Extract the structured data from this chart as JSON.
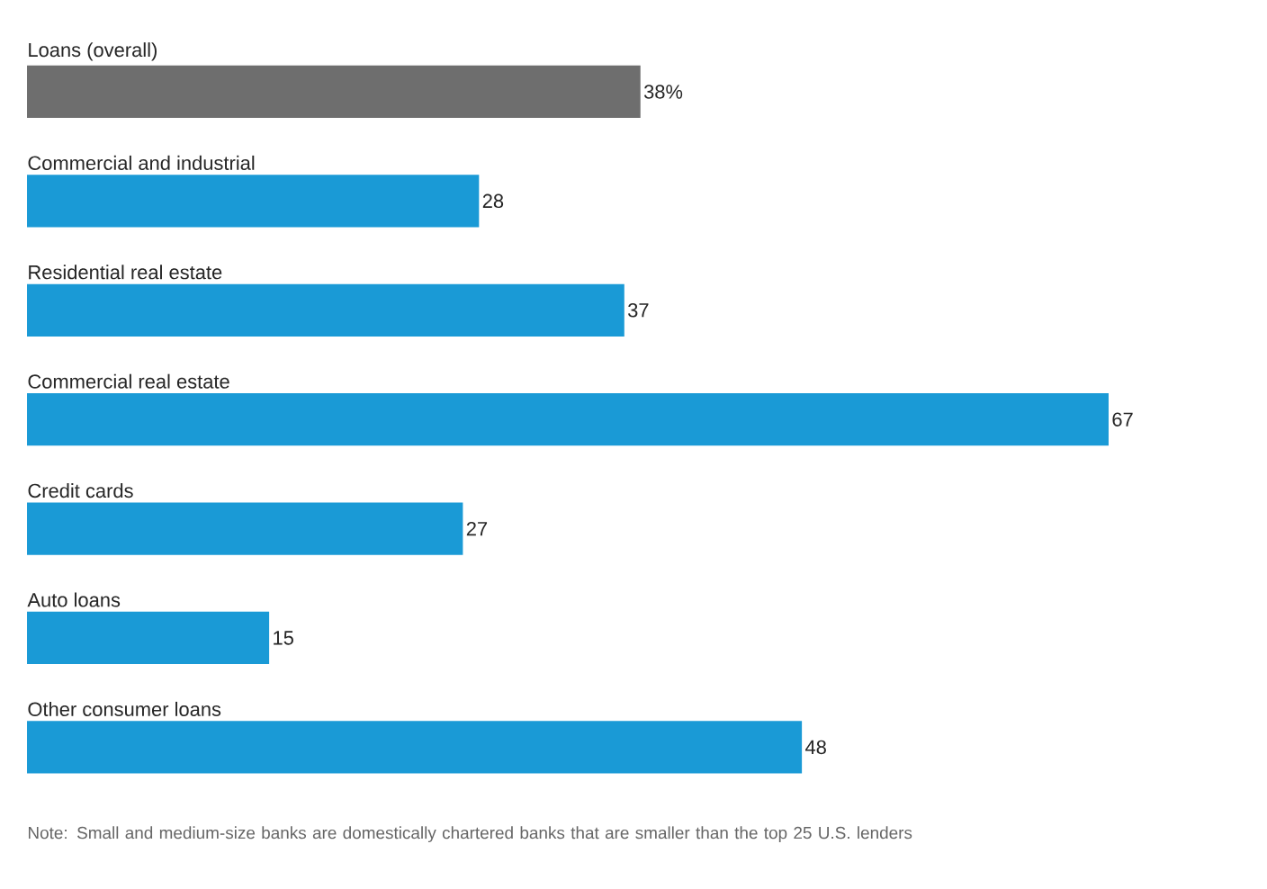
{
  "chart_data": {
    "type": "bar",
    "orientation": "horizontal",
    "categories": [
      "Loans (overall)",
      "Commercial and industrial",
      "Residential real estate",
      "Commercial real estate",
      "Credit cards",
      "Auto loans",
      "Other consumer loans"
    ],
    "values": [
      38,
      28,
      37,
      67,
      27,
      15,
      48
    ],
    "value_labels": [
      "38%",
      "28",
      "37",
      "67",
      "27",
      "15",
      "48"
    ],
    "colors": [
      "#6e6e6e",
      "#1a9ad6",
      "#1a9ad6",
      "#1a9ad6",
      "#1a9ad6",
      "#1a9ad6",
      "#1a9ad6"
    ],
    "relative": false,
    "annotations": [
      "Note: Small and medium-size banks are domestically chartered banks that are smaller than the top 25 U.S. lenders"
    ]
  }
}
